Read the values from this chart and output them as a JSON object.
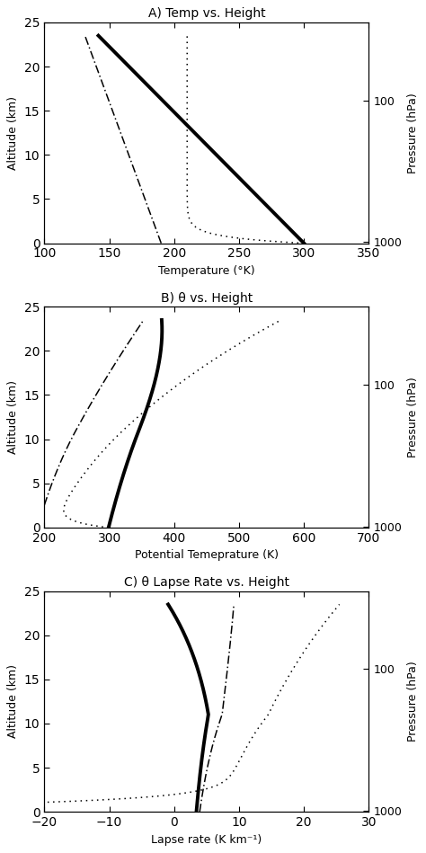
{
  "title_A": "A) Temp vs. Height",
  "title_B": "B) θ vs. Height",
  "title_C": "C) θ Lapse Rate vs. Height",
  "xlabel_A": "Temperature (°K)",
  "xlabel_B": "Potential Temeprature (K)",
  "xlabel_C": "Lapse rate (K km⁻¹)",
  "ylabel": "Altitude (km)",
  "ylabel_right": "Pressure (hPa)",
  "xlim_A": [
    100,
    350
  ],
  "xlim_B": [
    200,
    700
  ],
  "xlim_C": [
    -20,
    30
  ],
  "ylim": [
    0,
    25
  ],
  "xticks_A": [
    100,
    150,
    200,
    250,
    300,
    350
  ],
  "xticks_B": [
    200,
    300,
    400,
    500,
    600,
    700
  ],
  "xticks_C": [
    -20,
    -10,
    0,
    10,
    20,
    30
  ],
  "yticks": [
    0,
    5,
    10,
    15,
    20,
    25
  ],
  "press_ticks_hPa": [
    1000,
    100
  ]
}
